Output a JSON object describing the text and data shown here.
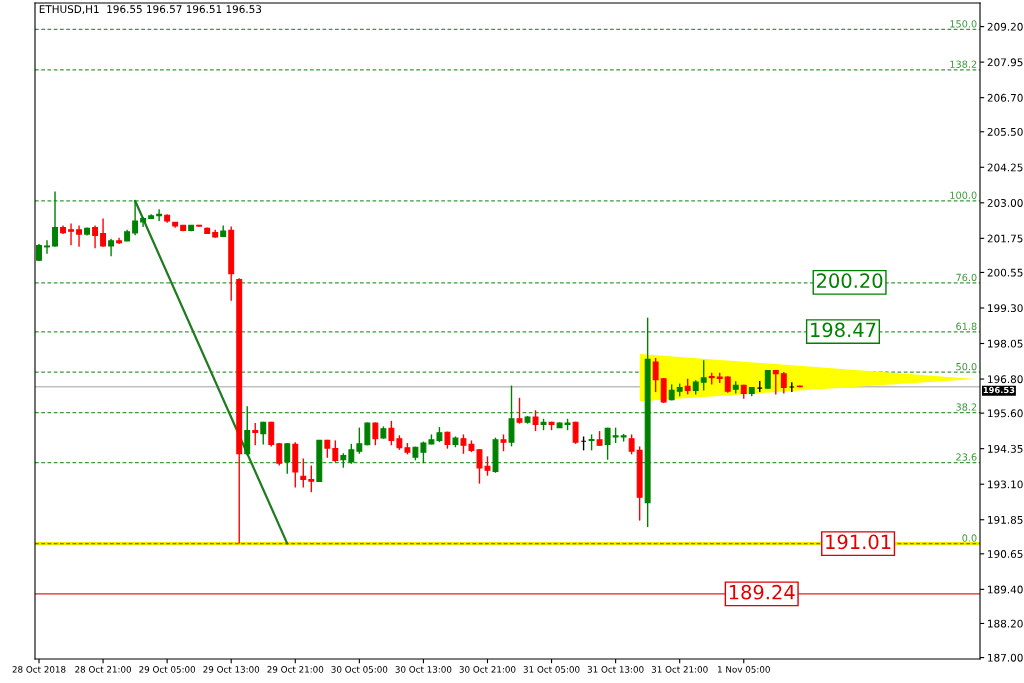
{
  "chart_data": {
    "type": "candlestick",
    "title": "ETHUSD,H1  196.55 196.57 196.51 196.53",
    "categories": [
      "28 Oct 2018",
      null,
      null,
      null,
      null,
      null,
      null,
      null,
      "28 Oct 21:00",
      null,
      null,
      null,
      null,
      null,
      null,
      null,
      "29 Oct 05:00",
      null,
      null,
      null,
      null,
      null,
      null,
      null,
      "29 Oct 13:00",
      null,
      null,
      null,
      null,
      null,
      null,
      null,
      "29 Oct 21:00",
      null,
      null,
      null,
      null,
      null,
      null,
      null,
      "30 Oct 05:00",
      null,
      null,
      null,
      null,
      null,
      null,
      null,
      "30 Oct 13:00",
      null,
      null,
      null,
      null,
      null,
      null,
      null,
      "30 Oct 21:00",
      null,
      null,
      null,
      null,
      null,
      null,
      null,
      "31 Oct 05:00",
      null,
      null,
      null,
      null,
      null,
      null,
      null,
      "31 Oct 13:00",
      null,
      null,
      null,
      null,
      null,
      null,
      null,
      "31 Oct 21:00",
      null,
      null,
      null,
      null,
      null,
      null,
      null,
      "1 Nov 05:00",
      null,
      null,
      null,
      null,
      null,
      null,
      null,
      null,
      null,
      null,
      null,
      null,
      null,
      null,
      null,
      null,
      null,
      null,
      null,
      null,
      null,
      null,
      null,
      null,
      null,
      null,
      null,
      null,
      null
    ],
    "ohlc": [
      [
        200.98,
        201.55,
        200.95,
        201.5
      ],
      [
        201.45,
        201.68,
        201.21,
        201.48
      ],
      [
        201.48,
        203.4,
        201.45,
        202.13
      ],
      [
        202.13,
        202.2,
        201.9,
        201.95
      ],
      [
        202.05,
        202.27,
        201.51,
        202.0
      ],
      [
        202.05,
        202.2,
        201.45,
        201.9
      ],
      [
        201.9,
        202.13,
        201.85,
        202.1
      ],
      [
        202.13,
        202.2,
        201.4,
        201.85
      ],
      [
        201.92,
        202.45,
        201.45,
        201.48
      ],
      [
        201.48,
        201.74,
        201.12,
        201.66
      ],
      [
        201.66,
        201.77,
        201.55,
        201.6
      ],
      [
        201.66,
        202.05,
        201.66,
        201.98
      ],
      [
        201.94,
        203.07,
        201.86,
        202.36
      ],
      [
        202.33,
        202.5,
        202.15,
        202.45
      ],
      [
        202.45,
        202.6,
        202.45,
        202.54
      ],
      [
        202.55,
        202.77,
        202.36,
        202.6
      ],
      [
        202.56,
        202.6,
        202.3,
        202.36
      ],
      [
        202.31,
        202.31,
        202.12,
        202.19
      ],
      [
        202.21,
        202.21,
        202.0,
        202.03
      ],
      [
        202.03,
        202.21,
        202.0,
        202.21
      ],
      [
        202.21,
        202.22,
        202.17,
        202.18
      ],
      [
        202.1,
        202.13,
        201.9,
        201.92
      ],
      [
        201.95,
        202.05,
        201.77,
        201.8
      ],
      [
        201.82,
        202.2,
        201.8,
        202.01
      ],
      [
        202.03,
        202.17,
        199.55,
        200.51
      ],
      [
        200.3,
        200.35,
        191.01,
        194.17
      ],
      [
        194.17,
        195.84,
        194.11,
        194.99
      ],
      [
        194.99,
        195.25,
        194.47,
        194.92
      ],
      [
        194.88,
        195.3,
        194.5,
        195.28
      ],
      [
        195.28,
        195.3,
        194.43,
        194.5
      ],
      [
        194.52,
        194.55,
        193.76,
        193.84
      ],
      [
        193.88,
        194.55,
        193.47,
        194.52
      ],
      [
        194.5,
        194.58,
        192.98,
        193.53
      ],
      [
        193.38,
        194.0,
        192.98,
        193.27
      ],
      [
        193.26,
        193.76,
        192.82,
        193.21
      ],
      [
        193.2,
        194.64,
        193.2,
        194.64
      ],
      [
        194.64,
        194.66,
        194.03,
        194.37
      ],
      [
        194.35,
        194.64,
        193.88,
        193.94
      ],
      [
        193.96,
        194.19,
        193.68,
        194.11
      ],
      [
        193.88,
        194.52,
        193.82,
        194.31
      ],
      [
        194.26,
        195.09,
        194.17,
        194.52
      ],
      [
        194.49,
        195.27,
        194.47,
        195.25
      ],
      [
        195.25,
        195.27,
        194.47,
        194.7
      ],
      [
        194.73,
        195.13,
        194.7,
        195.05
      ],
      [
        195.07,
        195.33,
        194.47,
        194.64
      ],
      [
        194.7,
        194.82,
        194.31,
        194.38
      ],
      [
        194.38,
        194.55,
        194.15,
        194.23
      ],
      [
        194.05,
        194.42,
        193.94,
        194.4
      ],
      [
        194.23,
        194.6,
        193.84,
        194.55
      ],
      [
        194.52,
        194.85,
        194.5,
        194.66
      ],
      [
        194.64,
        195.11,
        194.58,
        194.91
      ],
      [
        194.93,
        194.95,
        194.35,
        194.5
      ],
      [
        194.5,
        194.78,
        194.4,
        194.72
      ],
      [
        194.7,
        194.85,
        194.17,
        194.47
      ],
      [
        194.5,
        194.64,
        194.23,
        194.29
      ],
      [
        194.31,
        194.33,
        193.12,
        193.67
      ],
      [
        193.73,
        194.08,
        193.4,
        193.59
      ],
      [
        193.55,
        194.74,
        193.5,
        194.66
      ],
      [
        194.66,
        194.85,
        194.26,
        194.58
      ],
      [
        194.58,
        196.57,
        194.43,
        195.4
      ],
      [
        195.4,
        196.14,
        195.23,
        195.28
      ],
      [
        195.28,
        195.5,
        195.23,
        195.46
      ],
      [
        195.46,
        195.7,
        194.97,
        195.2
      ],
      [
        195.2,
        195.4,
        195.0,
        195.28
      ],
      [
        195.28,
        195.3,
        195.0,
        195.2
      ],
      [
        195.09,
        195.28,
        195.09,
        195.25
      ],
      [
        195.2,
        195.4,
        195.0,
        195.25
      ],
      [
        195.28,
        195.3,
        194.52,
        194.58
      ],
      [
        194.61,
        194.78,
        194.29,
        194.61
      ],
      [
        194.64,
        194.85,
        194.29,
        194.67
      ],
      [
        194.66,
        194.97,
        194.45,
        194.47
      ],
      [
        194.5,
        195.09,
        193.96,
        195.07
      ],
      [
        194.76,
        195.09,
        194.55,
        194.8
      ],
      [
        194.76,
        194.87,
        194.6,
        194.8
      ],
      [
        194.7,
        194.85,
        194.15,
        194.26
      ],
      [
        194.29,
        194.43,
        191.82,
        192.64
      ],
      [
        192.45,
        198.96,
        191.59,
        197.49
      ],
      [
        197.4,
        197.54,
        196.34,
        196.78
      ],
      [
        196.81,
        196.83,
        195.96,
        195.99
      ],
      [
        196.07,
        196.61,
        196.05,
        196.4
      ],
      [
        196.37,
        196.64,
        196.19,
        196.5
      ],
      [
        196.54,
        196.81,
        196.26,
        196.4
      ],
      [
        196.4,
        196.76,
        196.26,
        196.69
      ],
      [
        196.69,
        197.46,
        196.4,
        196.84
      ],
      [
        196.89,
        197.02,
        196.61,
        196.85
      ],
      [
        196.87,
        197.02,
        196.66,
        196.82
      ],
      [
        196.87,
        196.9,
        196.32,
        196.37
      ],
      [
        196.44,
        196.72,
        196.29,
        196.58
      ],
      [
        196.58,
        196.6,
        196.11,
        196.29
      ],
      [
        196.29,
        196.52,
        196.19,
        196.5
      ],
      [
        196.48,
        196.73,
        196.34,
        196.48
      ],
      [
        196.48,
        197.12,
        196.46,
        197.1
      ],
      [
        197.1,
        197.12,
        196.26,
        196.99
      ],
      [
        196.98,
        197.05,
        196.29,
        196.5
      ],
      [
        196.52,
        196.69,
        196.34,
        196.52
      ],
      [
        196.55,
        196.57,
        196.51,
        196.53
      ],
      null,
      null,
      null,
      null,
      null,
      null,
      null,
      null,
      null,
      null,
      null,
      null,
      null,
      null,
      null,
      null,
      null,
      null,
      null,
      null,
      null,
      null
    ],
    "colors": [
      "#008000",
      "#008000",
      "#008000",
      "#ff0000",
      "#ff0000",
      "#ff0000",
      "#008000",
      "#ff0000",
      "#ff0000",
      "#008000",
      "#ff0000",
      "#008000",
      "#008000",
      "#008000",
      "#008000",
      "#008000",
      "#ff0000",
      "#ff0000",
      "#ff0000",
      "#008000",
      "#ff0000",
      "#ff0000",
      "#ff0000",
      "#008000",
      "#ff0000",
      "#ff0000",
      "#008000",
      "#ff0000",
      "#008000",
      "#ff0000",
      "#ff0000",
      "#008000",
      "#ff0000",
      "#ff0000",
      "#ff0000",
      "#008000",
      "#ff0000",
      "#ff0000",
      "#008000",
      "#008000",
      "#008000",
      "#008000",
      "#ff0000",
      "#008000",
      "#ff0000",
      "#ff0000",
      "#ff0000",
      "#008000",
      "#008000",
      "#008000",
      "#008000",
      "#ff0000",
      "#008000",
      "#ff0000",
      "#ff0000",
      "#ff0000",
      "#ff0000",
      "#008000",
      "#ff0000",
      "#008000",
      "#ff0000",
      "#008000",
      "#ff0000",
      "#008000",
      "#ff0000",
      "#008000",
      "#008000",
      "#ff0000",
      "#000000",
      "#008000",
      "#ff0000",
      "#008000",
      "#008000",
      "#008000",
      "#ff0000",
      "#ff0000",
      "#008000",
      "#ff0000",
      "#ff0000",
      "#008000",
      "#008000",
      "#ff0000",
      "#008000",
      "#008000",
      "#ff0000",
      "#ff0000",
      "#ff0000",
      "#008000",
      "#ff0000",
      "#008000",
      "#000000",
      "#008000",
      "#ff0000",
      "#ff0000",
      "#000000",
      "#ff0000",
      null,
      null,
      null,
      null,
      null,
      null,
      null,
      null,
      null,
      null,
      null,
      null,
      null,
      null,
      null,
      null,
      null,
      null,
      null,
      null,
      null,
      null
    ],
    "series": [
      {
        "type": "line",
        "values": [
          null,
          null,
          null,
          null,
          null,
          null,
          null,
          null,
          null,
          null,
          null,
          null,
          203.07,
          null,
          null,
          null,
          null,
          null,
          null,
          null,
          null,
          null,
          null,
          null,
          null,
          null,
          null,
          null,
          null,
          null,
          null,
          191.01,
          null,
          null,
          null,
          null,
          null,
          null,
          null,
          null,
          null,
          null,
          null,
          null,
          null,
          null,
          null,
          null,
          null,
          null,
          null,
          null,
          null,
          null,
          null,
          null,
          null,
          null,
          null,
          null,
          null,
          null,
          null,
          null,
          null,
          null,
          null,
          null,
          null,
          null,
          null,
          null,
          null,
          null,
          null,
          null,
          null,
          null,
          null,
          null,
          null,
          null,
          null,
          null,
          null,
          null,
          null,
          null,
          null,
          null,
          null,
          null,
          null,
          null,
          null,
          null,
          null,
          null,
          null,
          null,
          null,
          null,
          null,
          null,
          null,
          null,
          null,
          null,
          null,
          null,
          null,
          null,
          null,
          null,
          null,
          null,
          null,
          null
        ],
        "color": "#1e7b1e"
      }
    ],
    "ylim": [
      186.95,
      210.03
    ],
    "yticks": [
      {
        "value": 187.0,
        "label": "187.00"
      },
      {
        "value": 188.2,
        "label": "188.20"
      },
      {
        "value": 189.4,
        "label": "189.40"
      },
      {
        "value": 190.65,
        "label": "190.65"
      },
      {
        "value": 191.85,
        "label": "191.85"
      },
      {
        "value": 193.1,
        "label": "193.10"
      },
      {
        "value": 194.35,
        "label": "194.35"
      },
      {
        "value": 195.6,
        "label": "195.60"
      },
      {
        "value": 196.8,
        "label": "196.80"
      },
      {
        "value": 198.05,
        "label": "198.05"
      },
      {
        "value": 199.3,
        "label": "199.30"
      },
      {
        "value": 200.55,
        "label": "200.55"
      },
      {
        "value": 201.75,
        "label": "201.75"
      },
      {
        "value": 203.0,
        "label": "203.00"
      },
      {
        "value": 204.25,
        "label": "204.25"
      },
      {
        "value": 205.5,
        "label": "205.50"
      },
      {
        "value": 206.7,
        "label": "206.70"
      },
      {
        "value": 207.95,
        "label": "207.95"
      },
      {
        "value": 209.2,
        "label": "209.20"
      }
    ],
    "bands": [
      {
        "axis": "y",
        "from": 190.95,
        "to": 191.07,
        "color": "#f5e600"
      }
    ],
    "ref_lines": [
      {
        "axis": "y",
        "value": 191.01,
        "color": "#3a9a3a",
        "line_style": "dashed"
      },
      {
        "axis": "y",
        "value": 193.86,
        "color": "#3a9a3a",
        "line_style": "dashed"
      },
      {
        "axis": "y",
        "value": 195.62,
        "color": "#3a9a3a",
        "line_style": "dashed"
      },
      {
        "axis": "y",
        "value": 197.04,
        "color": "#3a9a3a",
        "line_style": "dashed"
      },
      {
        "axis": "y",
        "value": 198.46,
        "color": "#3a9a3a",
        "line_style": "dashed"
      },
      {
        "axis": "y",
        "value": 200.18,
        "color": "#3a9a3a",
        "line_style": "dashed"
      },
      {
        "axis": "y",
        "value": 203.07,
        "color": "#3a9a3a",
        "line_style": "dashed"
      },
      {
        "axis": "y",
        "value": 207.68,
        "color": "#3a9a3a",
        "line_style": "dashed"
      },
      {
        "axis": "y",
        "value": 209.1,
        "color": "#3a9a3a",
        "line_style": "dashed"
      },
      {
        "axis": "y",
        "value": 189.24,
        "color": "#e02020",
        "line_style": "solid"
      },
      {
        "axis": "y",
        "value": 196.53,
        "label": "196.53",
        "color": "#c0c0c0",
        "line_style": "solid"
      }
    ],
    "annotations": [
      {
        "text": "0.0",
        "y": 191.01
      },
      {
        "text": "23.6",
        "y": 193.86
      },
      {
        "text": "38.2",
        "y": 195.62
      },
      {
        "text": "50.0",
        "y": 197.04
      },
      {
        "text": "61.8",
        "y": 198.46
      },
      {
        "text": "76.0",
        "y": 200.18
      },
      {
        "text": "100.0",
        "y": 203.07
      },
      {
        "text": "138.2",
        "y": 207.68
      },
      {
        "text": "150.0",
        "y": 209.1
      },
      {
        "text": "200.20",
        "y": 200.2
      },
      {
        "text": "198.47",
        "y": 198.47
      },
      {
        "text": "191.01",
        "y": 191.01
      },
      {
        "text": "189.24",
        "y": 189.24
      }
    ],
    "grid": false
  }
}
